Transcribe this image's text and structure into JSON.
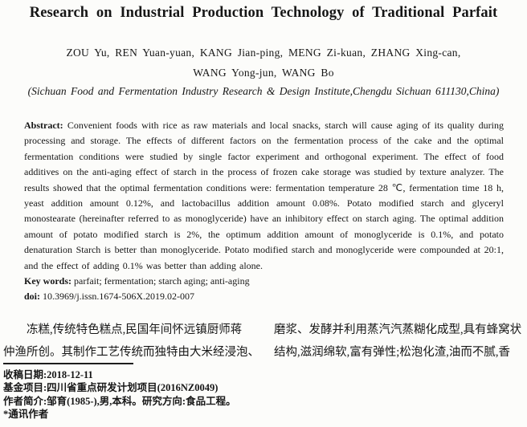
{
  "colors": {
    "paper": "#fcfcfa",
    "ink": "#161616"
  },
  "header": {
    "title": "Research on Industrial Production Technology of Traditional Parfait",
    "authors_line1": "ZOU Yu, REN Yuan-yuan, KANG Jian-ping, MENG Zi-kuan, ZHANG Xing-can,",
    "authors_line2": "WANG Yong-jun, WANG Bo",
    "affiliation": "(Sichuan Food and Fermentation Industry Research & Design Institute,Chengdu Sichuan 611130,China)"
  },
  "abstract": {
    "label": "Abstract:",
    "text": "Convenient foods with rice as raw materials and local snacks, starch will cause aging of its quality during processing and storage. The effects of different factors on the fermentation process of the cake and the optimal fermentation conditions were studied by single factor experiment and orthogonal experiment. The effect of food additives on the anti-aging effect of starch in the process of frozen cake storage was studied by texture analyzer. The results showed that the optimal fermentation conditions were: fermentation temperature 28 ℃, fermentation time 18 h, yeast addition amount 0.12%, and lactobacillus addition amount 0.08%. Potato modified starch and glyceryl monostearate (hereinafter referred to as monoglyceride) have an inhibitory effect on starch aging. The optimal addition amount of potato modified starch is 2%, the optimum addition amount of monoglyceride is 0.1%, and potato denaturation Starch is better than monoglyceride. Potato modified starch and monoglyceride were compounded at 20:1, and the effect of adding 0.1% was better than adding alone.",
    "keywords_label": "Key words:",
    "keywords": "parfait; fermentation; starch aging; anti-aging",
    "doi_label": "doi:",
    "doi": "10.3969/j.issn.1674-506X.2019.02-007"
  },
  "body_cn": {
    "left_lines": {
      "0": "冻糕,传统特色糕点,民国年间怀远镇厨师蒋",
      "1": "仲渔所创。其制作工艺传统而独特由大米经浸泡、"
    },
    "right_lines": {
      "0": "磨浆、发酵并利用蒸汽汽蒸糊化成型,具有蜂窝状",
      "1": "结构,滋润绵软,富有弹性;松泡化渣,油而不腻,香"
    }
  },
  "footnotes": {
    "received_label": "收稿日期:",
    "received_value": "2018-12-11",
    "fund_label": "基金项目:",
    "fund_value": "四川省重点研发计划项目(2016NZ0049)",
    "bio_label": "作者简介:",
    "bio_value": "邹育(1985-),男,本科。研究方向:食品工程。",
    "corresponding": "*通讯作者"
  }
}
